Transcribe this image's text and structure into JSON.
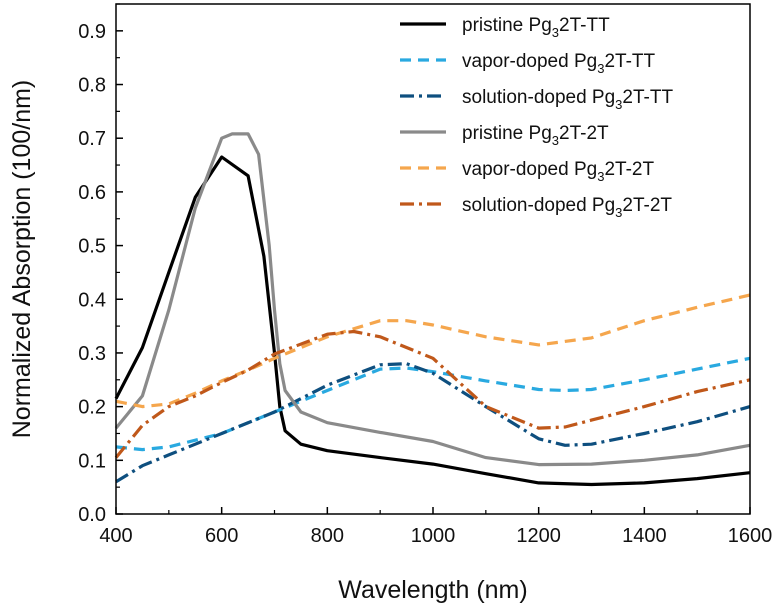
{
  "chart_data": {
    "type": "line",
    "xlabel": "Wavelength (nm)",
    "ylabel": "Normalized Absorption (100/nm)",
    "xlim": [
      400,
      1600
    ],
    "ylim": [
      0.0,
      0.95
    ],
    "xticks": [
      "400",
      "600",
      "800",
      "1000",
      "1200",
      "1400",
      "1600"
    ],
    "yticks": [
      "0.0",
      "0.1",
      "0.2",
      "0.3",
      "0.4",
      "0.5",
      "0.6",
      "0.7",
      "0.8",
      "0.9"
    ],
    "grid": false,
    "legend_position": "top-right",
    "series": [
      {
        "key": "pristine-tt",
        "legend": {
          "pre": "pristine  Pg",
          "sub": "3",
          "post": "2T-TT"
        },
        "color": "#000000",
        "dash": "solid",
        "points": [
          [
            400,
            0.215
          ],
          [
            450,
            0.31
          ],
          [
            500,
            0.45
          ],
          [
            550,
            0.59
          ],
          [
            600,
            0.665
          ],
          [
            650,
            0.63
          ],
          [
            680,
            0.48
          ],
          [
            700,
            0.3
          ],
          [
            710,
            0.2
          ],
          [
            720,
            0.155
          ],
          [
            750,
            0.13
          ],
          [
            800,
            0.118
          ],
          [
            900,
            0.105
          ],
          [
            1000,
            0.093
          ],
          [
            1100,
            0.075
          ],
          [
            1200,
            0.058
          ],
          [
            1300,
            0.055
          ],
          [
            1400,
            0.058
          ],
          [
            1500,
            0.066
          ],
          [
            1600,
            0.077
          ]
        ]
      },
      {
        "key": "vapor-tt",
        "legend": {
          "pre": "vapor-doped  Pg",
          "sub": "3",
          "post": "2T-TT"
        },
        "color": "#29a9e0",
        "dash": "dash",
        "points": [
          [
            400,
            0.125
          ],
          [
            450,
            0.12
          ],
          [
            500,
            0.125
          ],
          [
            600,
            0.15
          ],
          [
            700,
            0.19
          ],
          [
            800,
            0.23
          ],
          [
            900,
            0.27
          ],
          [
            950,
            0.272
          ],
          [
            1000,
            0.265
          ],
          [
            1100,
            0.248
          ],
          [
            1200,
            0.232
          ],
          [
            1250,
            0.23
          ],
          [
            1300,
            0.232
          ],
          [
            1400,
            0.25
          ],
          [
            1500,
            0.27
          ],
          [
            1600,
            0.29
          ]
        ]
      },
      {
        "key": "solution-tt",
        "legend": {
          "pre": "solution-doped  Pg",
          "sub": "3",
          "post": "2T-TT"
        },
        "color": "#0e4f7f",
        "dash": "dashdot",
        "points": [
          [
            400,
            0.06
          ],
          [
            450,
            0.09
          ],
          [
            500,
            0.11
          ],
          [
            600,
            0.15
          ],
          [
            700,
            0.19
          ],
          [
            800,
            0.24
          ],
          [
            900,
            0.278
          ],
          [
            950,
            0.28
          ],
          [
            1000,
            0.262
          ],
          [
            1100,
            0.2
          ],
          [
            1200,
            0.14
          ],
          [
            1250,
            0.128
          ],
          [
            1300,
            0.13
          ],
          [
            1400,
            0.15
          ],
          [
            1500,
            0.172
          ],
          [
            1600,
            0.2
          ]
        ]
      },
      {
        "key": "pristine-2t",
        "legend": {
          "pre": "pristine  Pg",
          "sub": "3",
          "post": "2T-2T"
        },
        "color": "#8a8a8a",
        "dash": "solid",
        "points": [
          [
            400,
            0.16
          ],
          [
            450,
            0.22
          ],
          [
            500,
            0.38
          ],
          [
            550,
            0.57
          ],
          [
            600,
            0.7
          ],
          [
            620,
            0.708
          ],
          [
            650,
            0.708
          ],
          [
            670,
            0.67
          ],
          [
            690,
            0.5
          ],
          [
            700,
            0.38
          ],
          [
            710,
            0.28
          ],
          [
            720,
            0.23
          ],
          [
            750,
            0.19
          ],
          [
            800,
            0.17
          ],
          [
            900,
            0.152
          ],
          [
            1000,
            0.135
          ],
          [
            1100,
            0.105
          ],
          [
            1200,
            0.092
          ],
          [
            1300,
            0.093
          ],
          [
            1400,
            0.1
          ],
          [
            1500,
            0.11
          ],
          [
            1600,
            0.128
          ]
        ]
      },
      {
        "key": "vapor-2t",
        "legend": {
          "pre": "vapor-doped  Pg",
          "sub": "3",
          "post": "2T-2T"
        },
        "color": "#f5a64d",
        "dash": "dash",
        "points": [
          [
            400,
            0.21
          ],
          [
            450,
            0.2
          ],
          [
            500,
            0.205
          ],
          [
            550,
            0.225
          ],
          [
            600,
            0.248
          ],
          [
            650,
            0.268
          ],
          [
            700,
            0.29
          ],
          [
            800,
            0.33
          ],
          [
            900,
            0.36
          ],
          [
            950,
            0.36
          ],
          [
            1000,
            0.352
          ],
          [
            1100,
            0.33
          ],
          [
            1200,
            0.315
          ],
          [
            1300,
            0.328
          ],
          [
            1400,
            0.36
          ],
          [
            1500,
            0.385
          ],
          [
            1600,
            0.408
          ]
        ]
      },
      {
        "key": "solution-2t",
        "legend": {
          "pre": "solution-doped  Pg",
          "sub": "3",
          "post": "2T-2T"
        },
        "color": "#c0581a",
        "dash": "dashdot",
        "points": [
          [
            400,
            0.105
          ],
          [
            450,
            0.165
          ],
          [
            500,
            0.2
          ],
          [
            550,
            0.22
          ],
          [
            600,
            0.245
          ],
          [
            650,
            0.268
          ],
          [
            700,
            0.298
          ],
          [
            800,
            0.335
          ],
          [
            850,
            0.34
          ],
          [
            900,
            0.33
          ],
          [
            1000,
            0.29
          ],
          [
            1100,
            0.2
          ],
          [
            1200,
            0.16
          ],
          [
            1250,
            0.162
          ],
          [
            1300,
            0.175
          ],
          [
            1400,
            0.2
          ],
          [
            1500,
            0.228
          ],
          [
            1600,
            0.25
          ]
        ]
      }
    ]
  }
}
